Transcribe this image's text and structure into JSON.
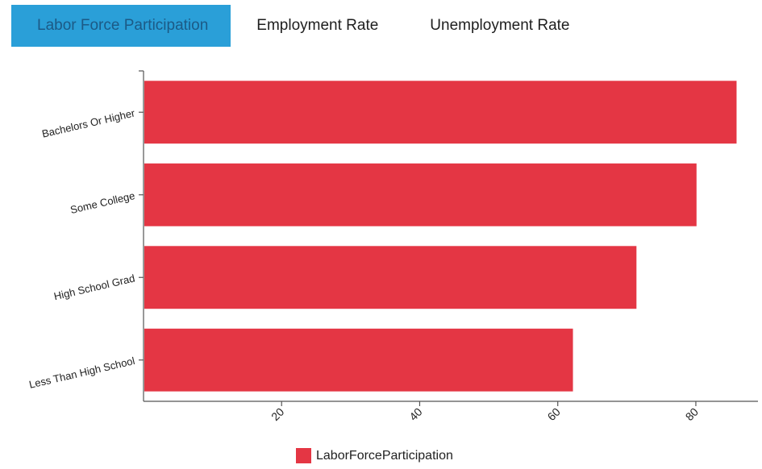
{
  "tabs": [
    {
      "label": "Labor Force Participation",
      "active": true
    },
    {
      "label": "Employment Rate",
      "active": false
    },
    {
      "label": "Unemployment Rate",
      "active": false
    }
  ],
  "colors": {
    "active_tab": "#2a9fd8",
    "bar": "#e43644",
    "axis": "#555555"
  },
  "chart_data": {
    "type": "bar",
    "orientation": "horizontal",
    "categories": [
      "Bachelors Or Higher",
      "Some College",
      "High School Grad",
      "Less Than High School"
    ],
    "series": [
      {
        "name": "LaborForceParticipation",
        "values": [
          85.9,
          80.1,
          71.4,
          62.2
        ]
      }
    ],
    "x_ticks": [
      20,
      40,
      60,
      80
    ],
    "xlim": [
      0,
      89
    ],
    "legend_position": "bottom-center"
  }
}
